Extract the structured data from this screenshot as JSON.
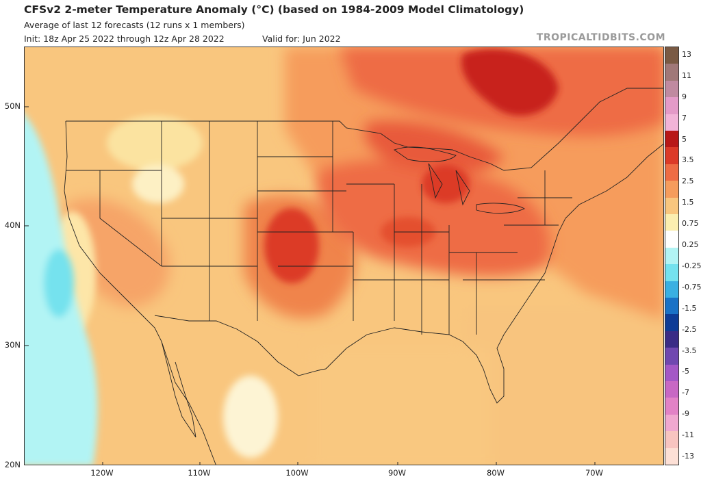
{
  "header": {
    "title": "CFSv2 2-meter Temperature Anomaly (°C) (based on 1984-2009 Model Climatology)",
    "subtitle": "Average of last 12 forecasts (12 runs x 1 members)",
    "init": "Init: 18z Apr 25 2022 through 12z Apr 28 2022",
    "valid": "Valid for: Jun 2022",
    "brand": "TROPICALTIDBITS.COM"
  },
  "map": {
    "region": "Continental United States",
    "lat_labels": [
      "50N",
      "40N",
      "30N",
      "20N"
    ],
    "lon_labels": [
      "120W",
      "110W",
      "100W",
      "90W",
      "80W",
      "70W"
    ],
    "anomaly_features": [
      {
        "name": "Strongest warmth over eastern Canada / Quebec",
        "value": "2.5 to 3.5"
      },
      {
        "name": "Warm core over Kansas/Oklahoma",
        "value": "2.5"
      },
      {
        "name": "Warm core over Michigan",
        "value": "2.5"
      },
      {
        "name": "Cool anomaly off California coast",
        "value": "-0.25 to -0.75"
      }
    ]
  },
  "colorbar": {
    "labels": [
      "13",
      "11",
      "9",
      "7",
      "5",
      "3.5",
      "2.5",
      "1.5",
      "0.75",
      "0.25",
      "-0.25",
      "-0.75",
      "-1.5",
      "-2.5",
      "-3.5",
      "-5",
      "-7",
      "-9",
      "-11",
      "-13"
    ],
    "colors": [
      "#7a5a44",
      "#a07878",
      "#c08aa0",
      "#e49ac8",
      "#f2b4d8",
      "#b81818",
      "#dc3a28",
      "#ee6c44",
      "#f69c5c",
      "#f9c67e",
      "#fbeeb0",
      "#ffffff",
      "#b2f4f4",
      "#74e2ee",
      "#3ab0e2",
      "#1a72c6",
      "#0e3c96",
      "#3a2c86",
      "#7048b0",
      "#a458c6",
      "#c868c4",
      "#e282c6",
      "#f0a8d0",
      "#f8c4c0",
      "#fde0d6"
    ]
  }
}
